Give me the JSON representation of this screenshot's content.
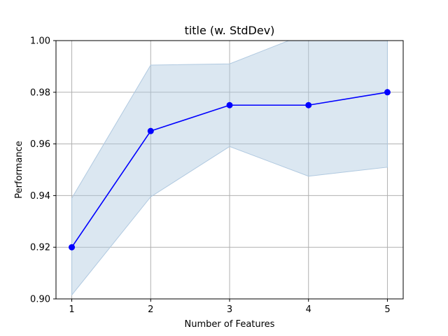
{
  "chart_data": {
    "type": "line",
    "title": "title (w. StdDev)",
    "xlabel": "Number of Features",
    "ylabel": "Performance",
    "x": [
      1,
      2,
      3,
      4,
      5
    ],
    "series": [
      {
        "values": [
          0.92,
          0.965,
          0.975,
          0.975,
          0.98
        ],
        "upper": [
          0.939,
          0.9905,
          0.991,
          1.003,
          1.001
        ],
        "lower": [
          0.9015,
          0.9395,
          0.959,
          0.9475,
          0.951
        ],
        "color": "#0000ff",
        "band_color": "#b0c9e0"
      }
    ],
    "xticks": [
      "1",
      "2",
      "3",
      "4",
      "5"
    ],
    "yticks": [
      "0.90",
      "0.92",
      "0.94",
      "0.96",
      "0.98",
      "1.00"
    ],
    "xlim": [
      0.8,
      5.2
    ],
    "ylim": [
      0.9,
      1.0
    ],
    "grid": true
  }
}
